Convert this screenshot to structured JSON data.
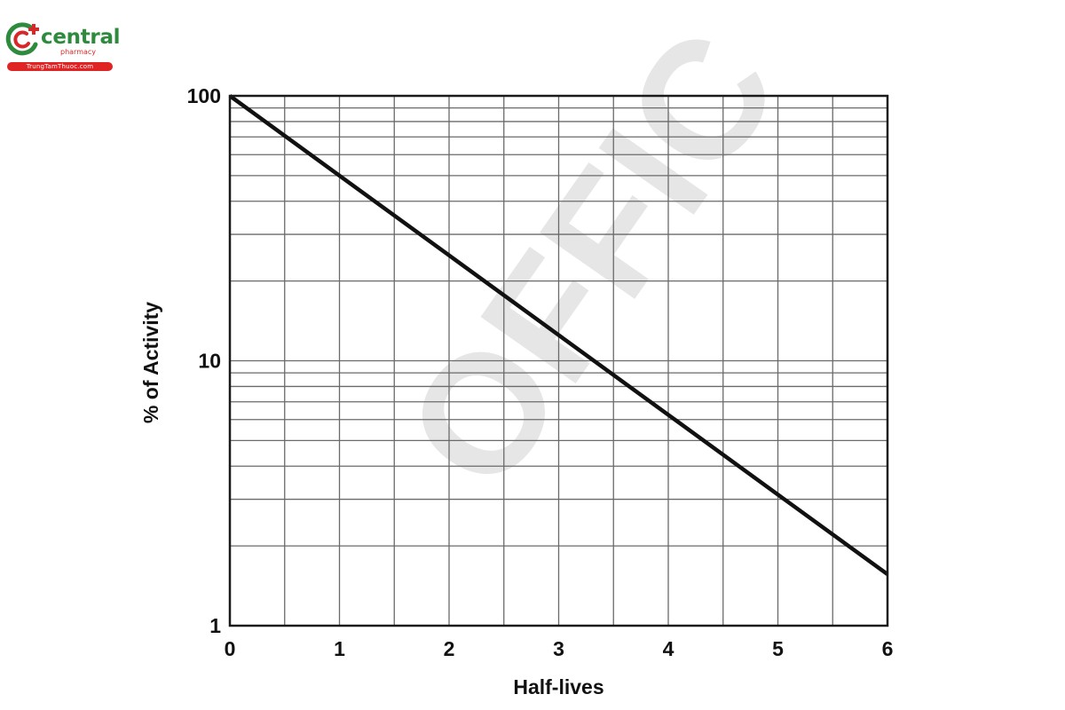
{
  "logo": {
    "name": "central",
    "sub": "pharmacy",
    "site": "TrungTamThuoc.com",
    "colors": {
      "green": "#2e8b3e",
      "red": "#e02424"
    }
  },
  "watermark": {
    "text": "OFFIC",
    "color": "#e6e6e6"
  },
  "chart_data": {
    "type": "line",
    "title": "",
    "xlabel": "Half-lives",
    "ylabel": "% of Activity",
    "xlim": [
      0,
      6
    ],
    "ylim": [
      1,
      100
    ],
    "yscale": "log",
    "grid": true,
    "x_ticks": [
      0,
      1,
      2,
      3,
      4,
      5,
      6
    ],
    "x_tick_labels": [
      "0",
      "1",
      "2",
      "3",
      "4",
      "5",
      "6"
    ],
    "y_ticks": [
      1,
      10,
      100
    ],
    "y_tick_labels": [
      "1",
      "10",
      "100"
    ],
    "x_minor_grid": [
      0.5,
      1.5,
      2.5,
      3.5,
      4.5,
      5.5
    ],
    "y_minor_grid": [
      2,
      3,
      4,
      5,
      6,
      7,
      8,
      9,
      20,
      30,
      40,
      50,
      60,
      70,
      80,
      90
    ],
    "series": [
      {
        "x": [
          0,
          1,
          2,
          3,
          4,
          5,
          6
        ],
        "values": [
          100,
          50,
          25,
          12.5,
          6.25,
          3.125,
          1.5625
        ],
        "color": "#111111"
      }
    ]
  }
}
